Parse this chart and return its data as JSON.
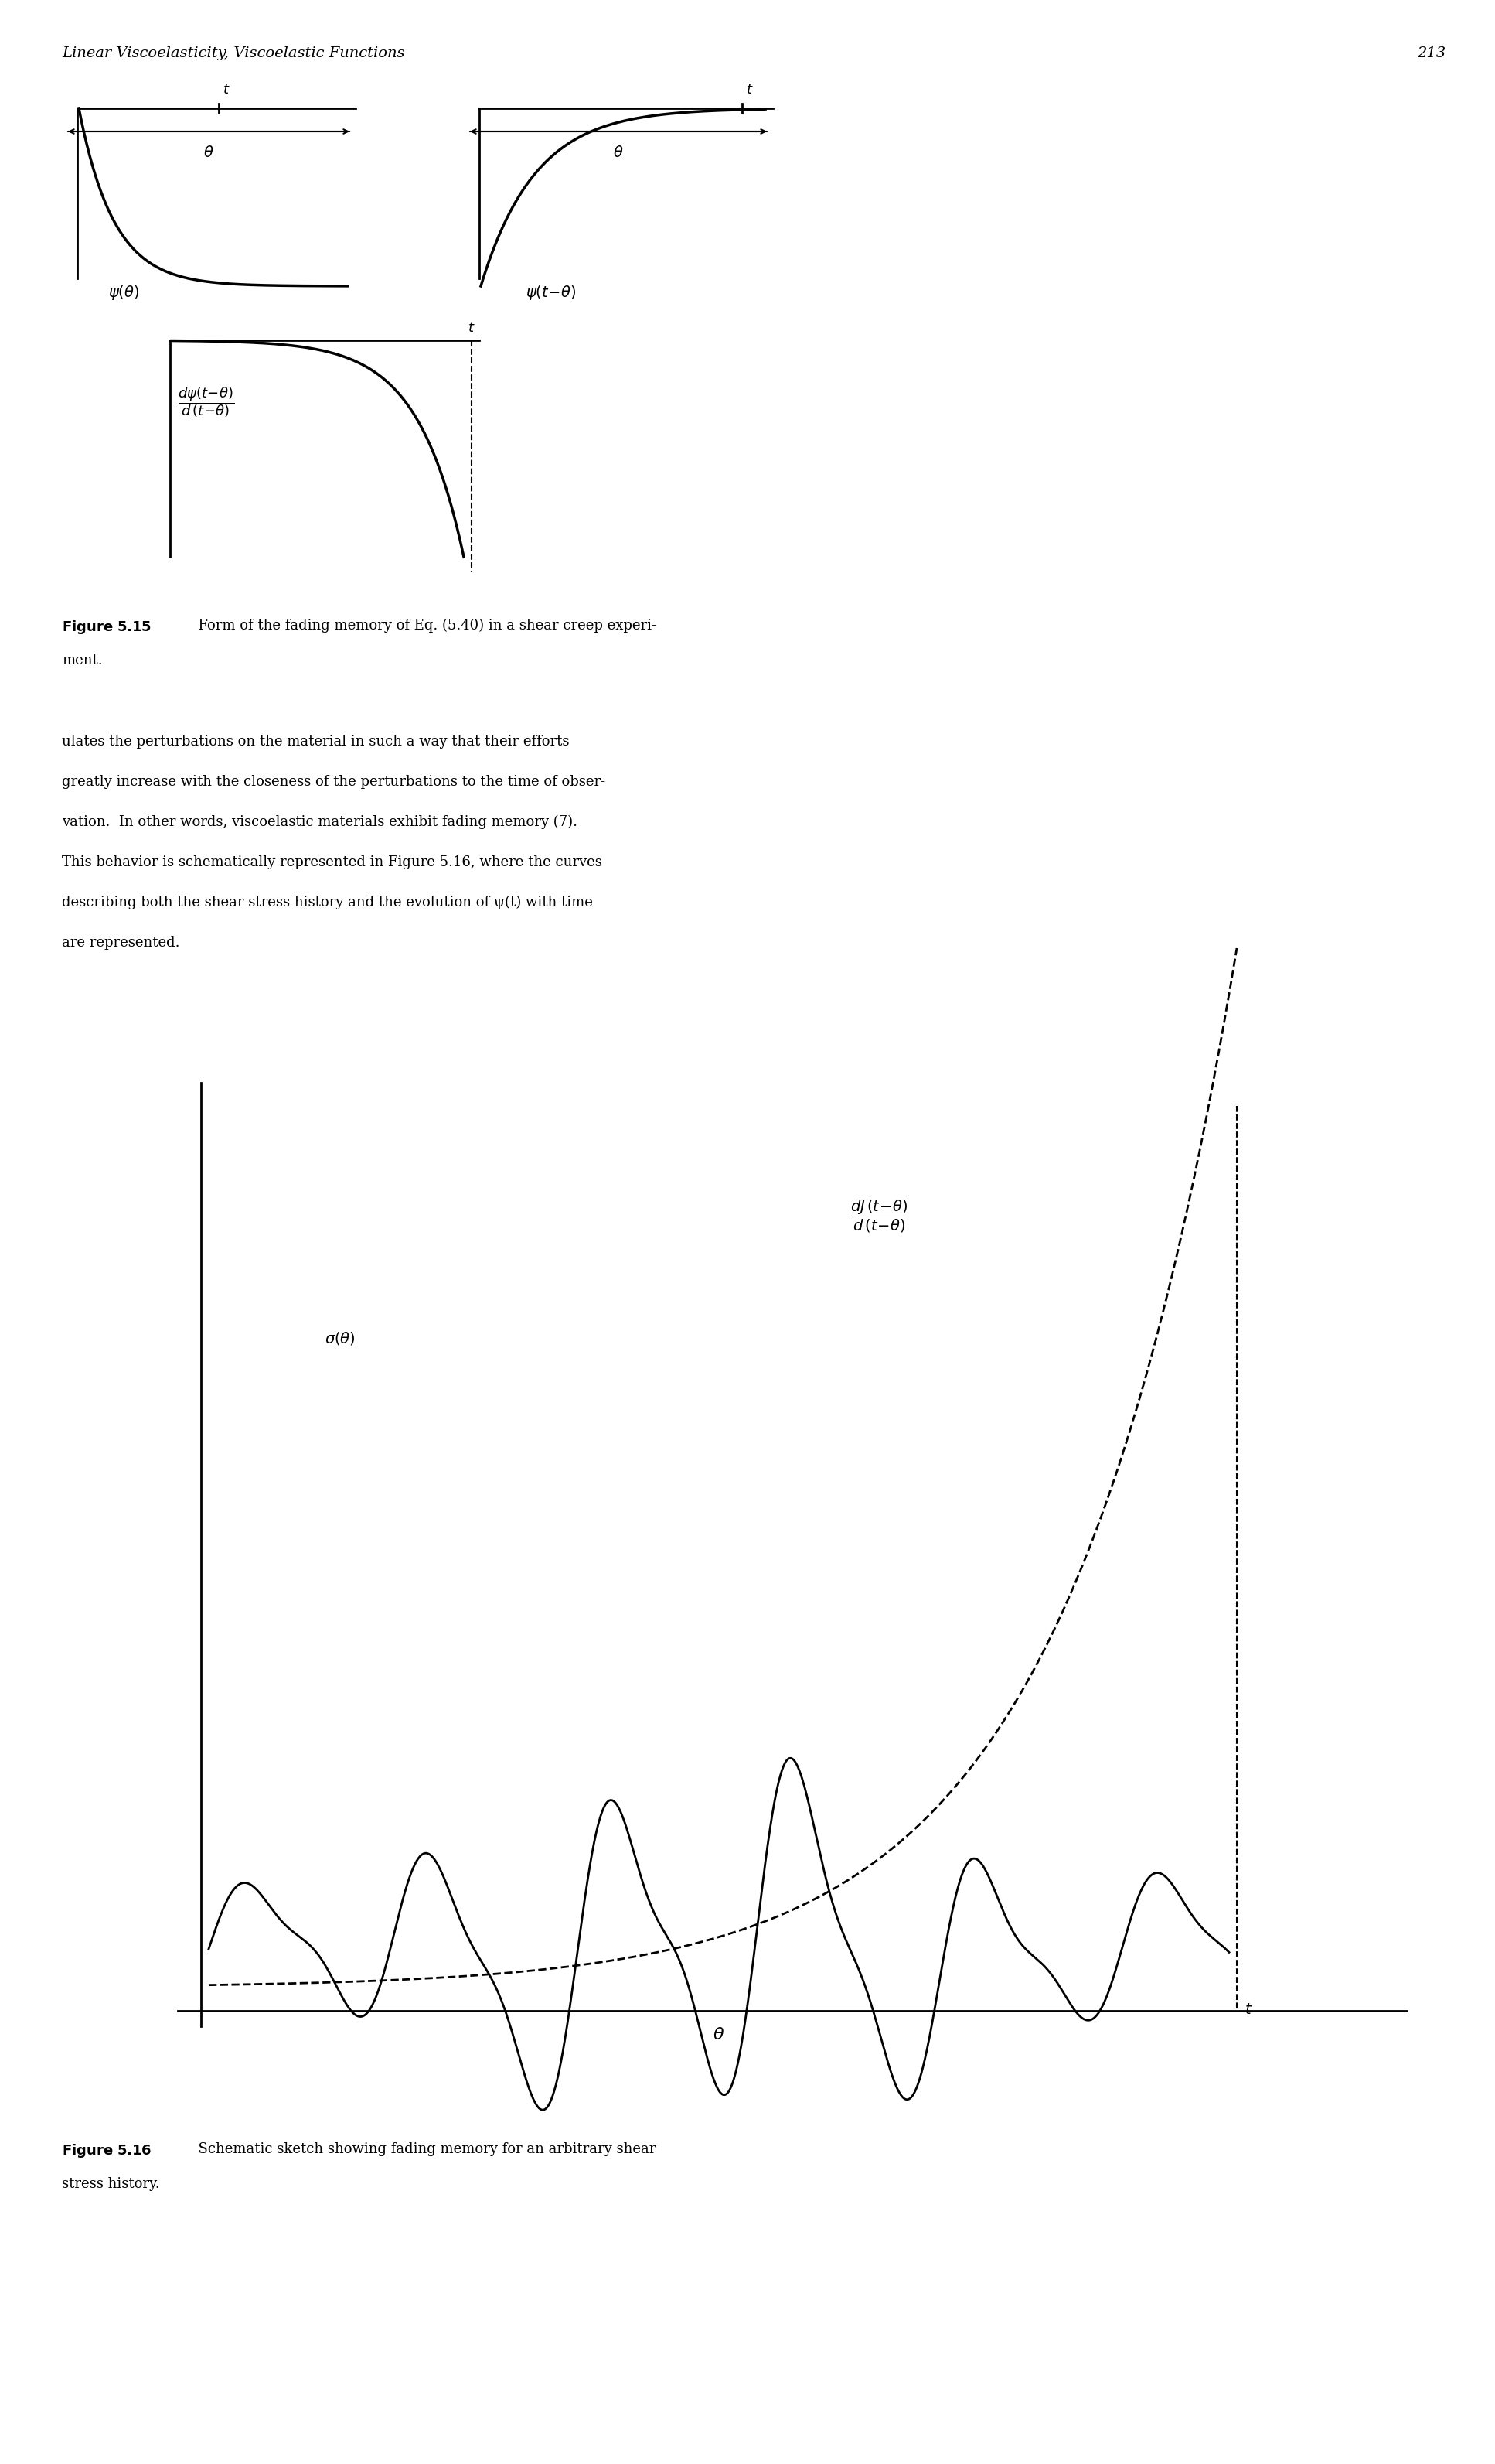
{
  "header_text": "Linear Viscoelasticity, Viscoelastic Functions",
  "page_number": "213",
  "header_fontsize": 13,
  "figure_caption_515": "Figure 5.15   Form of the fading memory of Eq. (5.40) in a shear creep experiment.",
  "figure_caption_516": "Figure 5.16   Schematic sketch showing fading memory for an arbitrary shear stress history.",
  "body_text": [
    "ulates the perturbations on the material in such a way that their efforts",
    "greatly increase with the closeness of the perturbations to the time of obser-",
    "vation.  In other words, viscoelastic materials exhibit fading memory (7).",
    "This behavior is schematically represented in Figure 5.16, where the curves",
    "describing both the shear stress history and the evolution of ψ(t) with time",
    "are represented."
  ],
  "background_color": "#ffffff",
  "line_color": "#000000"
}
